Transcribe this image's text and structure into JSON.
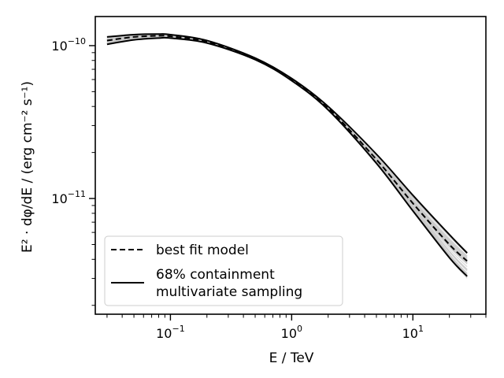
{
  "chart_data": {
    "type": "line",
    "x_scale": "log",
    "y_scale": "log",
    "xlabel": "E / TeV",
    "ylabel": "E² · dφ/dE / (erg cm⁻² s⁻¹)",
    "xlim": [
      0.024,
      40
    ],
    "ylim": [
      1.75e-12,
      1.55e-10
    ],
    "x_ticks": [
      {
        "value": 0.1,
        "base": "10",
        "exp": "−1"
      },
      {
        "value": 1,
        "base": "10",
        "exp": "0"
      },
      {
        "value": 10,
        "base": "10",
        "exp": "1"
      }
    ],
    "y_ticks": [
      {
        "value": 1e-11,
        "base": "10",
        "exp": "−11"
      },
      {
        "value": 1e-10,
        "base": "10",
        "exp": "−10"
      }
    ],
    "grid": false,
    "legend": {
      "placement": "lower-left",
      "entries": [
        {
          "label": "best fit model",
          "style": "dashed"
        },
        {
          "label": "68% containment\nmultivariate sampling",
          "style": "solid"
        }
      ]
    },
    "x": [
      0.03,
      0.05,
      0.08,
      0.1,
      0.2,
      0.5,
      1,
      2,
      5,
      10,
      20,
      28
    ],
    "series": [
      {
        "name": "best fit model",
        "style": "dashed",
        "color": "#000000",
        "values": [
          1.08e-10,
          1.14e-10,
          1.16e-10,
          1.15e-10,
          1.06e-10,
          8.2e-11,
          6e-11,
          3.9e-11,
          1.8e-11,
          9.3e-12,
          5e-12,
          3.9e-12
        ]
      },
      {
        "name": "68% containment",
        "style": "solid",
        "color": "#000000",
        "values": [
          1.14e-10,
          1.18e-10,
          1.19e-10,
          1.18e-10,
          1.08e-10,
          8.3e-11,
          6.1e-11,
          4e-11,
          1.95e-11,
          1.05e-11,
          5.8e-12,
          4.4e-12
        ]
      },
      {
        "name": "68% containment",
        "style": "solid",
        "color": "#000000",
        "values": [
          1.02e-10,
          1.09e-10,
          1.12e-10,
          1.12e-10,
          1.04e-10,
          8.1e-11,
          5.9e-11,
          3.8e-11,
          1.7e-11,
          8.3e-12,
          4.1e-12,
          3.1e-12
        ]
      }
    ],
    "sampling_band": {
      "color": "#c8c8c8",
      "count": 40
    },
    "colors": {
      "axes": "#000000",
      "best_fit": "#000000",
      "containment": "#000000",
      "samples": "#c8c8c8"
    }
  }
}
